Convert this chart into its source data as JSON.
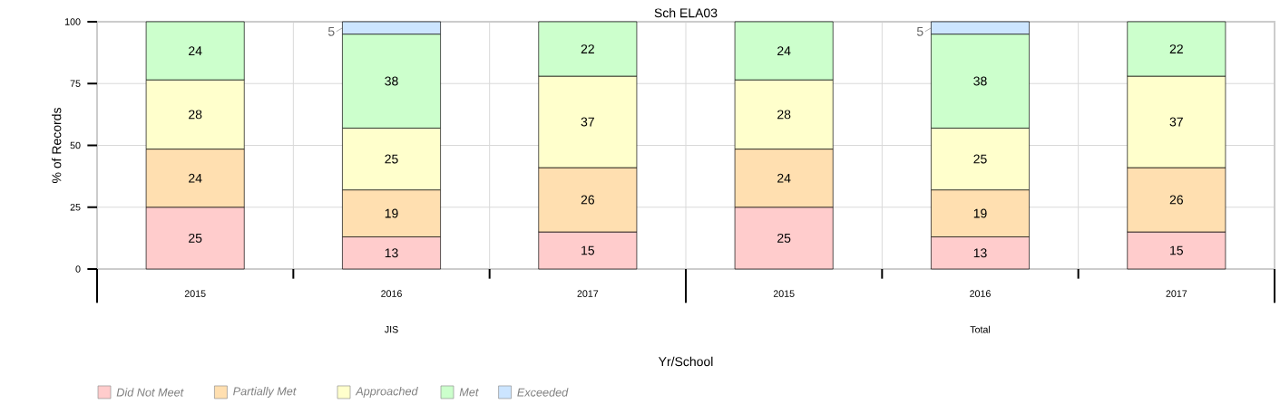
{
  "chart_data": {
    "type": "bar",
    "title": "Sch ELA03",
    "xlabel": "Yr/School",
    "ylabel": "% of Records",
    "categories": [
      "2015",
      "2016",
      "2017",
      "2015",
      "2016",
      "2017"
    ],
    "annotations": [
      "JIS",
      "Total"
    ],
    "stacked": true,
    "grid": true,
    "legend": "bottom left",
    "ylim": [
      0,
      100
    ],
    "yticks": [
      0,
      25,
      50,
      75,
      100
    ],
    "series": [
      {
        "name": "Did Not Meet",
        "color": "#ffcccc",
        "values": [
          25,
          13,
          15,
          25,
          13,
          15
        ],
        "value_labels": [
          "25",
          "13",
          "15",
          "25",
          "13",
          "15"
        ]
      },
      {
        "name": "Partially Met",
        "color": "#ffdfb0",
        "values": [
          23.5,
          19,
          26,
          23.5,
          19,
          26
        ],
        "value_labels": [
          "24",
          "19",
          "26",
          "24",
          "19",
          "26"
        ]
      },
      {
        "name": "Approached",
        "color": "#ffffcc",
        "values": [
          28,
          25,
          37,
          28,
          25,
          37
        ],
        "value_labels": [
          "28",
          "25",
          "37",
          "28",
          "25",
          "37"
        ]
      },
      {
        "name": "Met",
        "color": "#ccffcc",
        "values": [
          23.5,
          38,
          22,
          23.5,
          38,
          22
        ],
        "value_labels": [
          "24",
          "38",
          "22",
          "24",
          "38",
          "22"
        ]
      },
      {
        "name": "Exceeded",
        "color": "#cce5ff",
        "values": [
          null,
          5,
          null,
          null,
          5,
          null
        ],
        "value_labels": [
          null,
          "5",
          null,
          null,
          "5",
          null
        ]
      }
    ]
  }
}
